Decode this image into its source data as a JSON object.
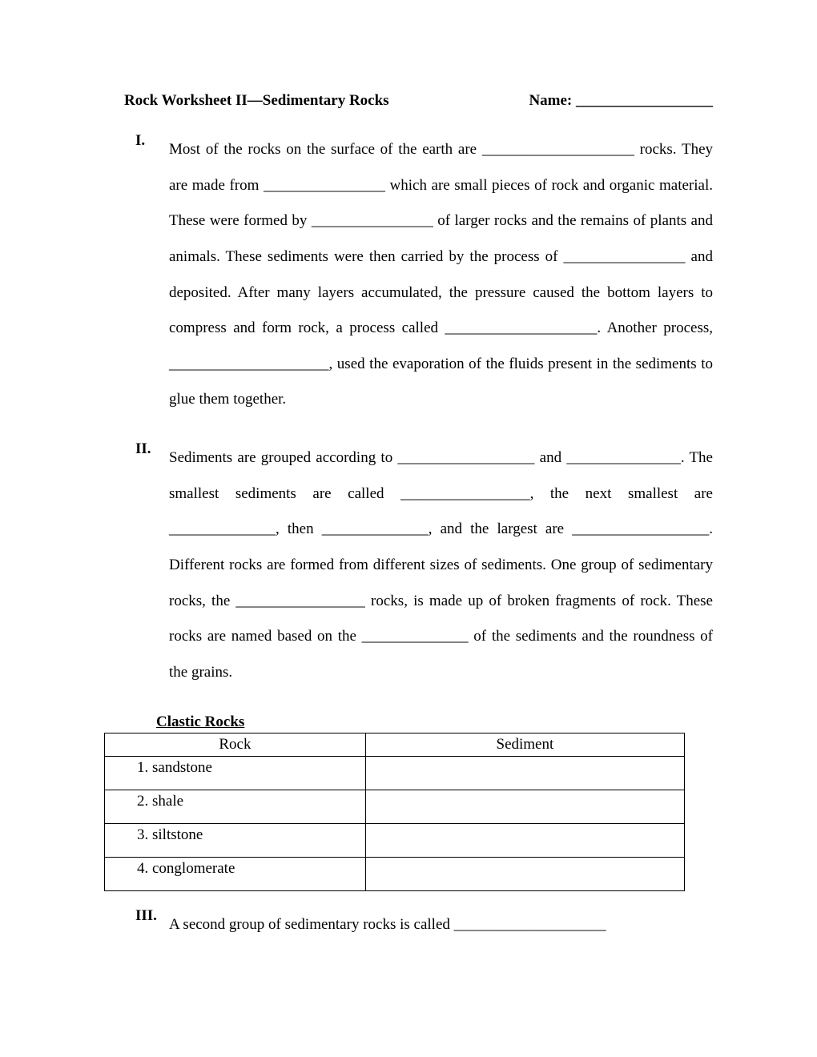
{
  "header": {
    "title": "Rock Worksheet II—Sedimentary Rocks",
    "name_label": "Name: __________________"
  },
  "sections": {
    "I": {
      "roman": "I.",
      "text": "Most of the rocks on the surface of the earth are ____________________ rocks.  They are made from ________________ which are small pieces of rock and organic material.  These were formed by ________________ of larger rocks and the remains of plants and animals.  These sediments were then carried by the process of ________________ and deposited.  After many layers accumulated, the pressure caused the bottom layers to compress and form rock, a process called ____________________.  Another process, _____________________, used the evaporation of the fluids present in the sediments to glue them together."
    },
    "II": {
      "roman": "II.",
      "text": "Sediments are grouped according to __________________ and _______________.  The smallest sediments are called _________________, the next smallest are ______________, then ______________, and the largest are __________________.  Different rocks are formed from different sizes of sediments.  One group of sedimentary rocks, the _________________ rocks, is made up of broken fragments of rock.  These rocks are named based on the ______________ of the sediments and the roundness of the grains."
    },
    "III": {
      "roman": "III.",
      "text": "A second group of sedimentary rocks is called ____________________"
    }
  },
  "table": {
    "heading": "Clastic Rocks",
    "col1": "Rock",
    "col2": "Sediment",
    "rows": [
      {
        "rock": "1.   sandstone",
        "sediment": ""
      },
      {
        "rock": "2.   shale",
        "sediment": ""
      },
      {
        "rock": "3.   siltstone",
        "sediment": ""
      },
      {
        "rock": "4.   conglomerate",
        "sediment": ""
      }
    ]
  }
}
